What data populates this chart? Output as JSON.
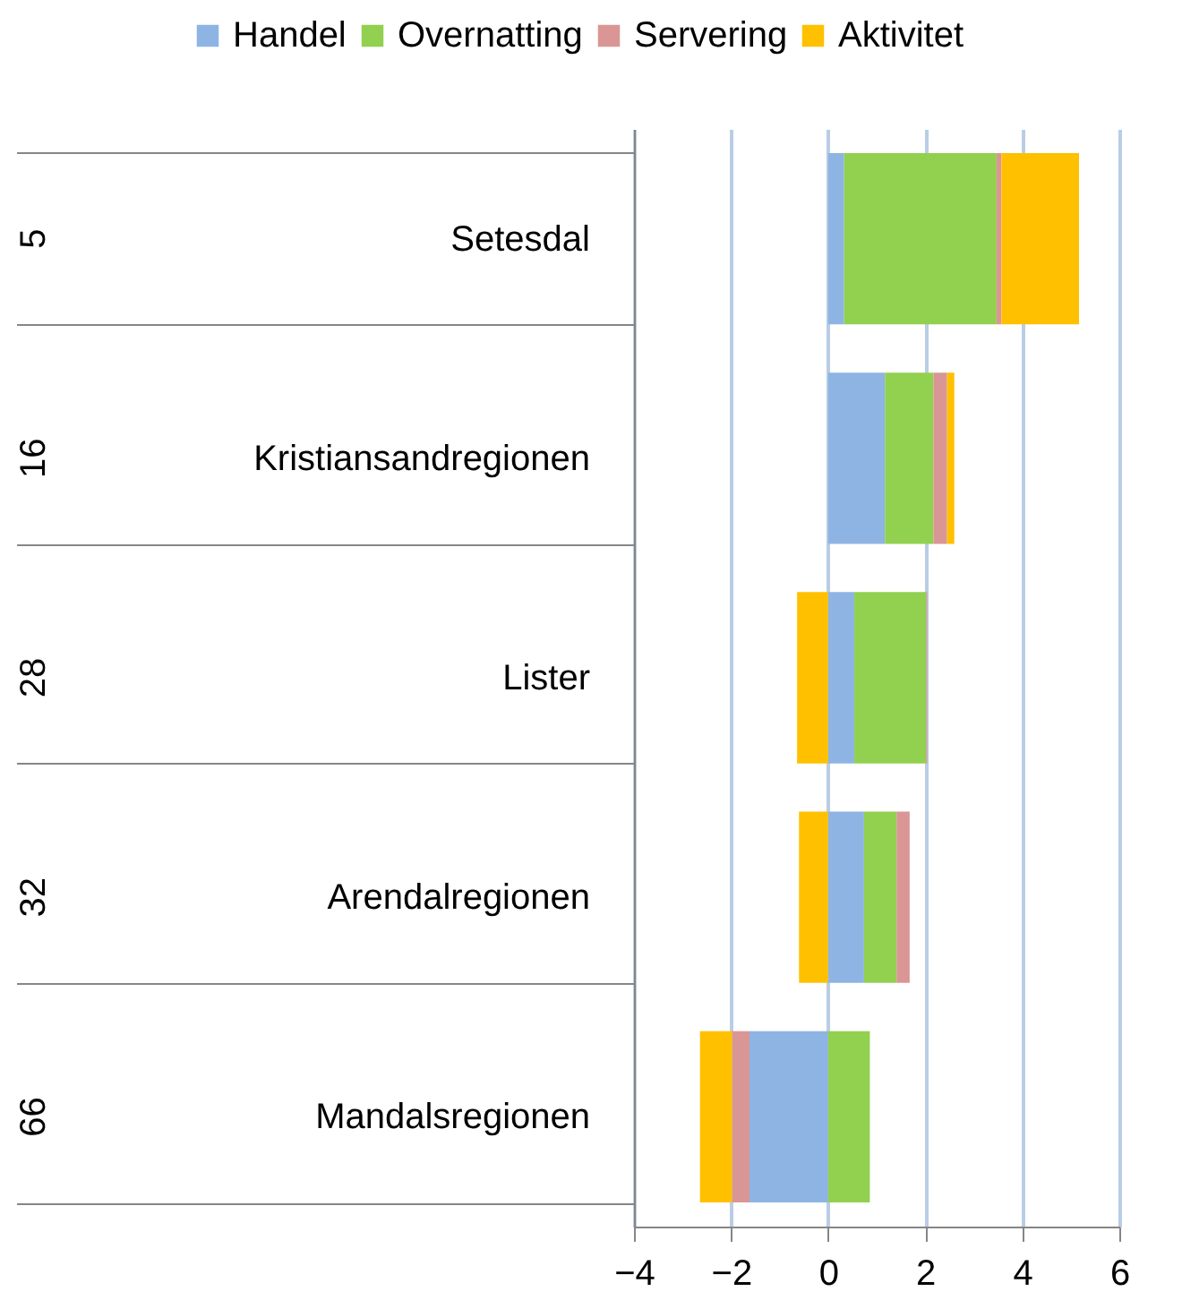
{
  "chart_data": {
    "type": "bar",
    "orientation": "horizontal",
    "stacked": true,
    "categories": [
      "Setesdal",
      "Kristiansandregionen",
      "Lister",
      "Arendalregionen",
      "Mandalsregionen"
    ],
    "series": [
      {
        "name": "Handel",
        "color": "#8eb4e3",
        "values": [
          0.33,
          1.17,
          0.54,
          0.74,
          -1.62
        ]
      },
      {
        "name": "Overnatting",
        "color": "#92d050",
        "values": [
          3.14,
          1.0,
          1.48,
          0.67,
          0.86
        ]
      },
      {
        "name": "Servering",
        "color": "#d99694",
        "values": [
          0.1,
          0.28,
          0.02,
          0.27,
          -0.36
        ]
      },
      {
        "name": "Aktivitet",
        "color": "#ffc000",
        "values": [
          1.6,
          0.15,
          -0.64,
          -0.6,
          -0.66
        ]
      }
    ],
    "xlim": [
      -4,
      6
    ],
    "xticks": [
      -4,
      -2,
      0,
      2,
      4,
      6
    ],
    "grid": "x",
    "legend": "top",
    "annotations": [
      "5",
      "16",
      "28",
      "32",
      "66"
    ]
  }
}
